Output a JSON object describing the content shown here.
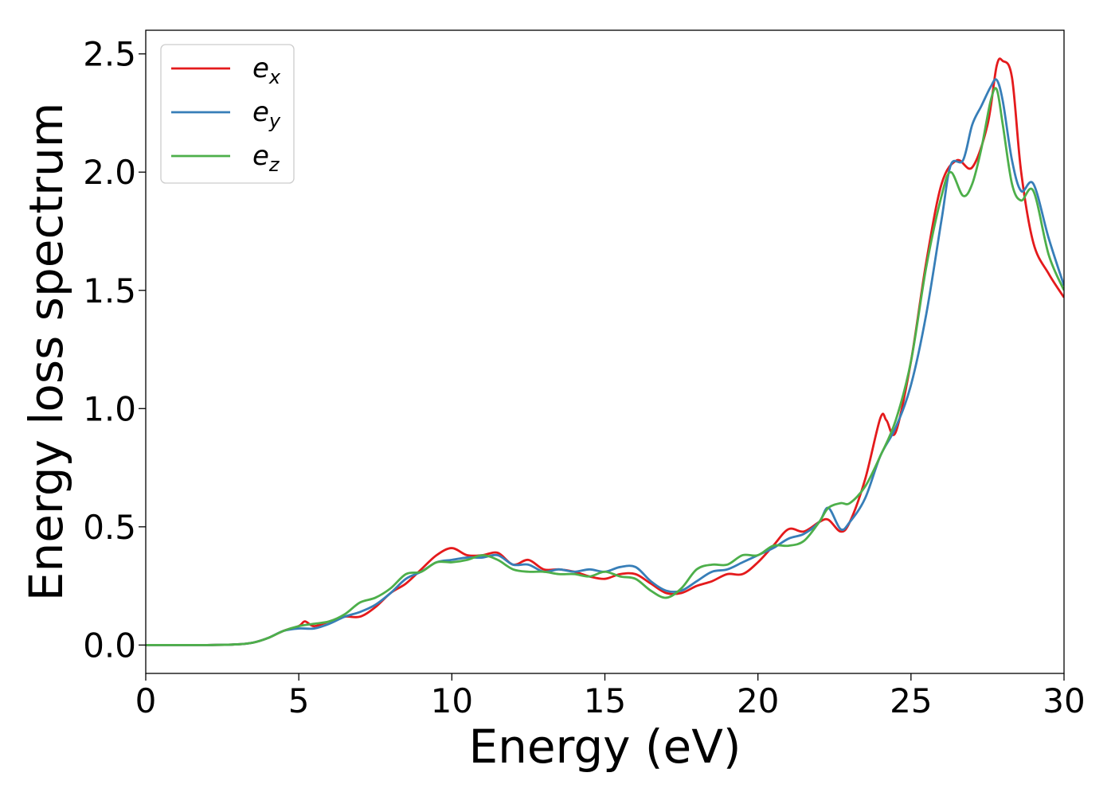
{
  "chart_data": {
    "type": "line",
    "xlabel": "Energy (eV)",
    "ylabel": "Energy loss spectrum",
    "xlim": [
      0,
      30
    ],
    "ylim": [
      -0.12,
      2.6
    ],
    "xticks": [
      0,
      5,
      10,
      15,
      20,
      25,
      30
    ],
    "yticks": [
      0.0,
      0.5,
      1.0,
      1.5,
      2.0,
      2.5
    ],
    "xtick_labels": [
      "0",
      "5",
      "10",
      "15",
      "20",
      "25",
      "30"
    ],
    "ytick_labels": [
      "0.0",
      "0.5",
      "1.0",
      "1.5",
      "2.0",
      "2.5"
    ],
    "grid": false,
    "legend": "top-left",
    "series": [
      {
        "name": "e",
        "subscript": "x",
        "color": "#e41a1c",
        "x": [
          0,
          2,
          3,
          3.5,
          4,
          4.5,
          5.0,
          5.2,
          5.5,
          6.0,
          6.5,
          7.0,
          7.5,
          8.0,
          8.5,
          9.0,
          9.5,
          10.0,
          10.5,
          11.0,
          11.5,
          12.0,
          12.5,
          13.0,
          13.5,
          14.0,
          14.5,
          15.0,
          15.5,
          16.0,
          16.5,
          17.0,
          17.5,
          18.0,
          18.5,
          19.0,
          19.5,
          20.0,
          20.5,
          21.0,
          21.5,
          22.0,
          22.3,
          22.7,
          23.0,
          23.5,
          24.0,
          24.2,
          24.5,
          25.0,
          25.5,
          26.0,
          26.5,
          27.0,
          27.5,
          27.8,
          28.0,
          28.3,
          28.6,
          29.0,
          29.5,
          30.0
        ],
        "y": [
          0,
          0.0,
          0.003,
          0.01,
          0.03,
          0.06,
          0.08,
          0.1,
          0.08,
          0.1,
          0.12,
          0.12,
          0.16,
          0.22,
          0.26,
          0.32,
          0.38,
          0.41,
          0.38,
          0.38,
          0.39,
          0.34,
          0.36,
          0.32,
          0.32,
          0.31,
          0.29,
          0.28,
          0.3,
          0.3,
          0.26,
          0.22,
          0.22,
          0.25,
          0.27,
          0.3,
          0.3,
          0.35,
          0.42,
          0.49,
          0.48,
          0.52,
          0.53,
          0.48,
          0.52,
          0.7,
          0.96,
          0.95,
          0.9,
          1.2,
          1.62,
          1.95,
          2.05,
          2.02,
          2.2,
          2.45,
          2.47,
          2.4,
          2.0,
          1.7,
          1.57,
          1.47
        ]
      },
      {
        "name": "e",
        "subscript": "y",
        "color": "#377eb8",
        "x": [
          0,
          2,
          3,
          3.5,
          4,
          4.5,
          5.0,
          5.5,
          6.0,
          6.5,
          7.0,
          7.5,
          8.0,
          8.5,
          9.0,
          9.5,
          10.0,
          10.5,
          11.0,
          11.5,
          12.0,
          12.5,
          13.0,
          13.5,
          14.0,
          14.5,
          15.0,
          15.5,
          16.0,
          16.5,
          17.0,
          17.5,
          18.0,
          18.5,
          19.0,
          19.5,
          20.0,
          20.5,
          21.0,
          21.5,
          22.0,
          22.3,
          22.7,
          23.0,
          23.5,
          24.0,
          24.5,
          25.0,
          25.5,
          26.0,
          26.3,
          26.7,
          27.0,
          27.3,
          27.6,
          27.8,
          28.0,
          28.3,
          28.6,
          29.0,
          29.5,
          30.0
        ],
        "y": [
          0,
          0.0,
          0.003,
          0.01,
          0.03,
          0.06,
          0.07,
          0.07,
          0.09,
          0.12,
          0.14,
          0.17,
          0.22,
          0.28,
          0.31,
          0.35,
          0.36,
          0.37,
          0.37,
          0.38,
          0.34,
          0.34,
          0.31,
          0.32,
          0.31,
          0.32,
          0.31,
          0.33,
          0.33,
          0.27,
          0.23,
          0.23,
          0.27,
          0.31,
          0.32,
          0.35,
          0.38,
          0.41,
          0.45,
          0.47,
          0.52,
          0.58,
          0.49,
          0.52,
          0.62,
          0.8,
          0.92,
          1.1,
          1.4,
          1.8,
          2.03,
          2.05,
          2.2,
          2.28,
          2.36,
          2.39,
          2.3,
          2.05,
          1.92,
          1.95,
          1.72,
          1.52
        ]
      },
      {
        "name": "e",
        "subscript": "z",
        "color": "#4daf4a",
        "x": [
          0,
          2,
          3,
          3.5,
          4,
          4.5,
          5.0,
          5.5,
          6.0,
          6.5,
          7.0,
          7.5,
          8.0,
          8.5,
          9.0,
          9.5,
          10.0,
          10.5,
          11.0,
          11.5,
          12.0,
          12.5,
          13.0,
          13.5,
          14.0,
          14.5,
          15.0,
          15.5,
          16.0,
          16.5,
          17.0,
          17.5,
          18.0,
          18.5,
          19.0,
          19.5,
          20.0,
          20.5,
          21.0,
          21.5,
          22.0,
          22.3,
          22.7,
          23.0,
          23.5,
          24.0,
          24.5,
          25.0,
          25.5,
          26.0,
          26.3,
          26.7,
          27.0,
          27.3,
          27.6,
          27.8,
          28.0,
          28.3,
          28.6,
          29.0,
          29.5,
          30.0
        ],
        "y": [
          0,
          0.0,
          0.003,
          0.01,
          0.03,
          0.06,
          0.08,
          0.09,
          0.1,
          0.13,
          0.18,
          0.2,
          0.24,
          0.3,
          0.31,
          0.35,
          0.35,
          0.36,
          0.38,
          0.36,
          0.32,
          0.31,
          0.31,
          0.3,
          0.3,
          0.29,
          0.31,
          0.29,
          0.28,
          0.23,
          0.2,
          0.24,
          0.32,
          0.34,
          0.34,
          0.38,
          0.38,
          0.42,
          0.42,
          0.44,
          0.52,
          0.58,
          0.6,
          0.6,
          0.67,
          0.8,
          0.95,
          1.2,
          1.6,
          1.9,
          2.0,
          1.9,
          1.95,
          2.1,
          2.3,
          2.35,
          2.2,
          1.95,
          1.88,
          1.92,
          1.65,
          1.5
        ]
      }
    ]
  }
}
